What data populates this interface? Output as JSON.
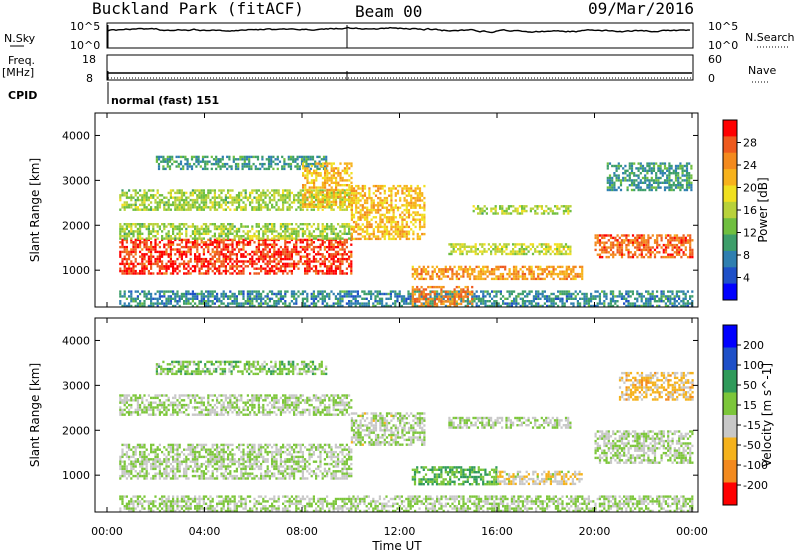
{
  "header": {
    "site_title": "Buckland Park (fitACF)",
    "beam_label": "Beam 00",
    "date": "09/Mar/2016"
  },
  "noise_panel": {
    "left_label": "N.Sky",
    "right_label": "N.Search",
    "left_ticks": [
      "10^5",
      "10^0"
    ],
    "right_ticks": [
      "10^5",
      "10^0"
    ]
  },
  "freq_panel": {
    "left_label_1": "Freq.",
    "left_label_2": "[MHz]",
    "right_label": "Nave",
    "left_ticks": [
      "18",
      "8"
    ],
    "right_ticks": [
      "60",
      "0"
    ]
  },
  "cpid": {
    "label": "CPID",
    "mode_text": "normal (fast) 151"
  },
  "x_axis": {
    "label": "Time UT",
    "ticks": [
      "00:00",
      "04:00",
      "08:00",
      "12:00",
      "16:00",
      "20:00",
      "00:00"
    ]
  },
  "chart_data": [
    {
      "type": "heatmap",
      "name": "power-panel",
      "ylabel": "Slant Range [km]",
      "x_range_hours": [
        0,
        24
      ],
      "ylim": [
        180,
        4500
      ],
      "y_ticks": [
        1000,
        2000,
        3000,
        4000
      ],
      "colorbar": {
        "label": "Power [dB]",
        "ticks": [
          "4",
          "8",
          "12",
          "16",
          "20",
          "24",
          "28"
        ],
        "range": [
          0,
          30
        ],
        "colors": [
          "#0000ff",
          "#1e50c8",
          "#2f7fb0",
          "#3d9e6a",
          "#6fbf3f",
          "#b8d23a",
          "#f0e020",
          "#f7b21c",
          "#f38a1e",
          "#ee5a1e",
          "#ff0000"
        ]
      },
      "regions": [
        {
          "t": [
            0.5,
            10
          ],
          "r": [
            900,
            1700
          ],
          "v": 27
        },
        {
          "t": [
            0.5,
            10
          ],
          "r": [
            1700,
            2050
          ],
          "v": 14
        },
        {
          "t": [
            0.5,
            10
          ],
          "r": [
            2350,
            2800
          ],
          "v": 14
        },
        {
          "t": [
            2,
            9
          ],
          "r": [
            3250,
            3550
          ],
          "v": 9
        },
        {
          "t": [
            8,
            10
          ],
          "r": [
            2400,
            3400
          ],
          "v": 20
        },
        {
          "t": [
            0.5,
            24
          ],
          "r": [
            200,
            550
          ],
          "v": 8
        },
        {
          "t": [
            10,
            13
          ],
          "r": [
            1700,
            2900
          ],
          "v": 20
        },
        {
          "t": [
            12.5,
            15
          ],
          "r": [
            200,
            650
          ],
          "v": 24
        },
        {
          "t": [
            12.5,
            19.5
          ],
          "r": [
            800,
            1100
          ],
          "v": 22
        },
        {
          "t": [
            14,
            19
          ],
          "r": [
            1350,
            1600
          ],
          "v": 16
        },
        {
          "t": [
            15,
            19
          ],
          "r": [
            2250,
            2450
          ],
          "v": 14
        },
        {
          "t": [
            20,
            24
          ],
          "r": [
            1300,
            1800
          ],
          "v": 25
        },
        {
          "t": [
            20.5,
            24
          ],
          "r": [
            2800,
            3400
          ],
          "v": 9
        }
      ]
    },
    {
      "type": "heatmap",
      "name": "velocity-panel",
      "ylabel": "Slant Range [km]",
      "x_range_hours": [
        0,
        24
      ],
      "ylim": [
        180,
        4500
      ],
      "y_ticks": [
        1000,
        2000,
        3000,
        4000
      ],
      "colorbar": {
        "label": "Velocity [m s^-1]",
        "ticks": [
          "200",
          "100",
          "50",
          "15",
          "-15",
          "-50",
          "-100",
          "-200"
        ],
        "range": [
          -250,
          250
        ],
        "colors": [
          "#0000ff",
          "#1e50c8",
          "#2f9a5a",
          "#7cc63a",
          "#c8c8c8",
          "#f5b21c",
          "#f38a1e",
          "#ff0000"
        ]
      },
      "regions": [
        {
          "t": [
            0.5,
            10
          ],
          "r": [
            900,
            1700
          ],
          "v": -5
        },
        {
          "t": [
            0.5,
            10
          ],
          "r": [
            2350,
            2800
          ],
          "v": 0
        },
        {
          "t": [
            2,
            9
          ],
          "r": [
            3250,
            3550
          ],
          "v": 30
        },
        {
          "t": [
            0.5,
            24
          ],
          "r": [
            200,
            550
          ],
          "v": 5
        },
        {
          "t": [
            10,
            13
          ],
          "r": [
            1700,
            2400
          ],
          "v": -10
        },
        {
          "t": [
            12.5,
            16
          ],
          "r": [
            800,
            1200
          ],
          "v": 60
        },
        {
          "t": [
            16,
            19.5
          ],
          "r": [
            800,
            1100
          ],
          "v": -45
        },
        {
          "t": [
            14,
            19
          ],
          "r": [
            2050,
            2300
          ],
          "v": -5
        },
        {
          "t": [
            20,
            24
          ],
          "r": [
            1300,
            2000
          ],
          "v": -5
        },
        {
          "t": [
            21,
            24
          ],
          "r": [
            2700,
            3300
          ],
          "v": -80
        }
      ]
    }
  ]
}
